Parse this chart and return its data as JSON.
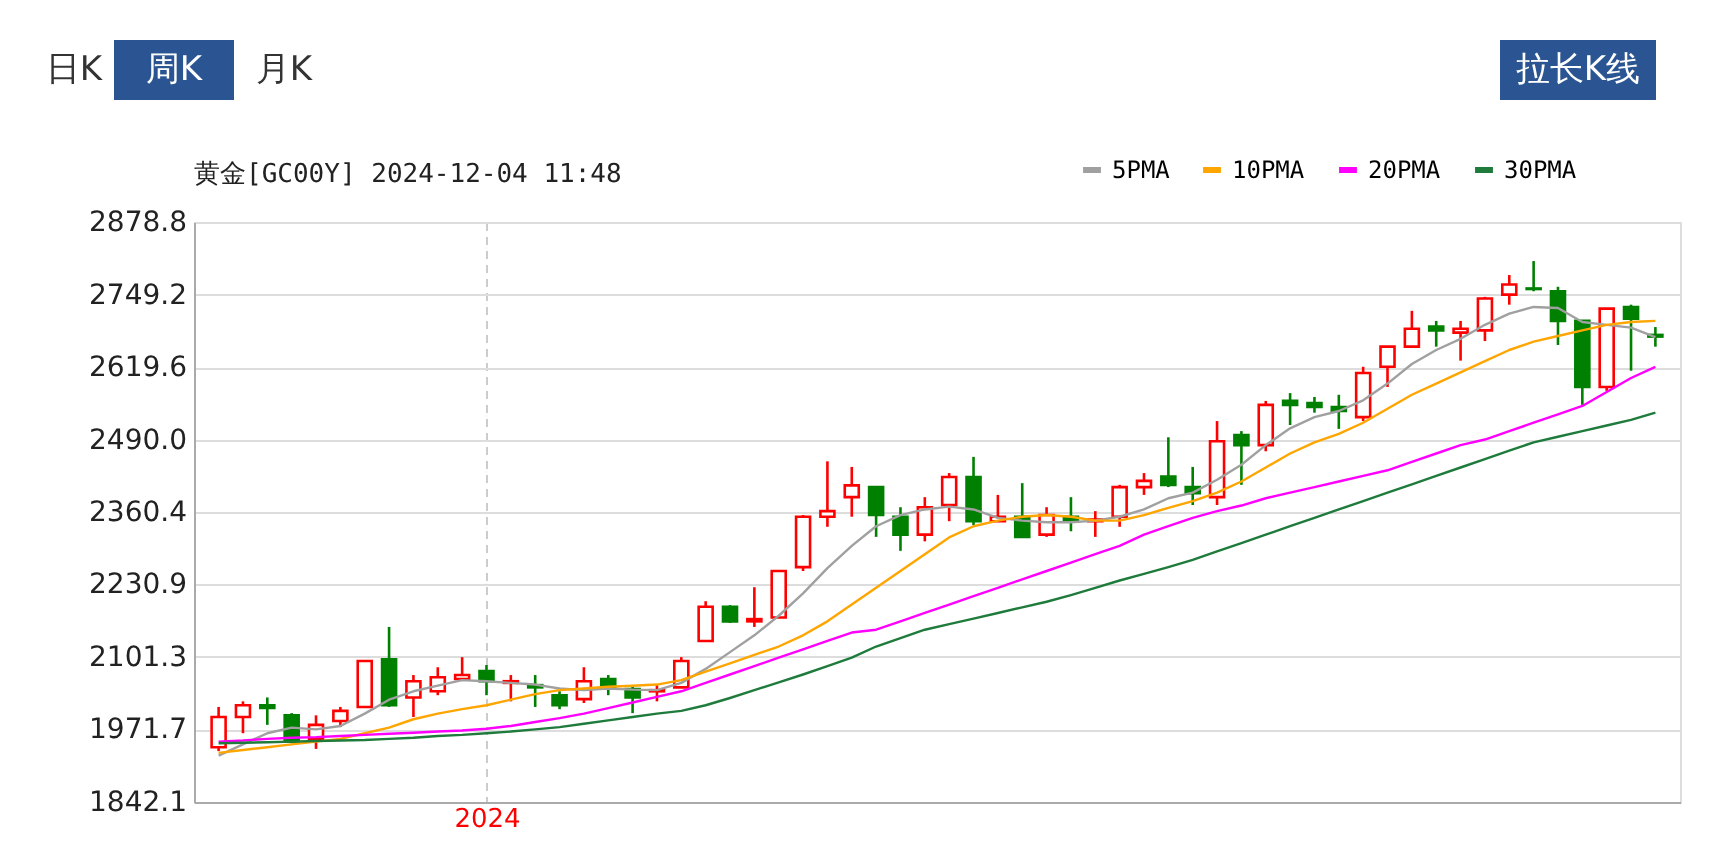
{
  "chart_data": {
    "type": "candlestick",
    "title": "黄金[GC00Y] 2024-12-04 11:48",
    "annotations": [
      "日K",
      "周K",
      "月K",
      "拉长K线"
    ],
    "categories": [
      null,
      null,
      null,
      null,
      null,
      null,
      null,
      null,
      null,
      null,
      null,
      "2024",
      null,
      null,
      null,
      null,
      null,
      null,
      null,
      null,
      null,
      null,
      null,
      null,
      null,
      null,
      null,
      null,
      null,
      null,
      null,
      null,
      null,
      null,
      null,
      null,
      null,
      null,
      null,
      null,
      null,
      null,
      null,
      null,
      null,
      null,
      null,
      null,
      null,
      null,
      null,
      null,
      null,
      null,
      null,
      null,
      null,
      null,
      null,
      null
    ],
    "ohlc": [
      [
        1940,
        2012,
        1933,
        1994
      ],
      [
        1994,
        2022,
        1965,
        2015
      ],
      [
        2015,
        2029,
        1980,
        2010
      ],
      [
        1997,
        2001,
        1947,
        1950
      ],
      [
        1955,
        1997,
        1937,
        1980
      ],
      [
        1987,
        2012,
        1976,
        2005
      ],
      [
        2012,
        2094,
        2012,
        2094
      ],
      [
        2097,
        2155,
        2012,
        2015
      ],
      [
        2029,
        2069,
        1994,
        2058
      ],
      [
        2040,
        2083,
        2033,
        2065
      ],
      [
        2062,
        2101,
        2062,
        2069
      ],
      [
        2076,
        2087,
        2033,
        2058
      ],
      [
        2055,
        2069,
        2022,
        2058
      ],
      [
        2051,
        2069,
        2012,
        2047
      ],
      [
        2033,
        2040,
        2008,
        2015
      ],
      [
        2026,
        2083,
        2019,
        2058
      ],
      [
        2062,
        2069,
        2033,
        2047
      ],
      [
        2044,
        2051,
        2001,
        2029
      ],
      [
        2040,
        2051,
        2022,
        2042
      ],
      [
        2047,
        2101,
        2047,
        2094
      ],
      [
        2130,
        2201,
        2130,
        2191
      ],
      [
        2191,
        2194,
        2162,
        2165
      ],
      [
        2165,
        2226,
        2155,
        2169
      ],
      [
        2172,
        2255,
        2172,
        2255
      ],
      [
        2262,
        2355,
        2255,
        2352
      ],
      [
        2352,
        2451,
        2334,
        2362
      ],
      [
        2387,
        2441,
        2352,
        2408
      ],
      [
        2405,
        2405,
        2316,
        2355
      ],
      [
        2352,
        2369,
        2291,
        2320
      ],
      [
        2320,
        2387,
        2308,
        2369
      ],
      [
        2373,
        2430,
        2344,
        2423
      ],
      [
        2423,
        2459,
        2337,
        2344
      ],
      [
        2344,
        2391,
        2344,
        2352
      ],
      [
        2352,
        2412,
        2316,
        2316
      ],
      [
        2320,
        2369,
        2316,
        2355
      ],
      [
        2352,
        2387,
        2326,
        2344
      ],
      [
        2344,
        2362,
        2316,
        2347
      ],
      [
        2352,
        2409,
        2334,
        2405
      ],
      [
        2405,
        2430,
        2391,
        2416
      ],
      [
        2424,
        2494,
        2405,
        2409
      ],
      [
        2405,
        2441,
        2373,
        2394
      ],
      [
        2387,
        2523,
        2373,
        2487
      ],
      [
        2498,
        2505,
        2409,
        2480
      ],
      [
        2480,
        2559,
        2469,
        2552
      ],
      [
        2559,
        2573,
        2516,
        2552
      ],
      [
        2555,
        2566,
        2538,
        2548
      ],
      [
        2548,
        2570,
        2509,
        2541
      ],
      [
        2530,
        2620,
        2523,
        2609
      ],
      [
        2620,
        2656,
        2584,
        2656
      ],
      [
        2656,
        2720,
        2656,
        2688
      ],
      [
        2692,
        2702,
        2656,
        2685
      ],
      [
        2681,
        2702,
        2631,
        2688
      ],
      [
        2685,
        2745,
        2666,
        2742
      ],
      [
        2749,
        2784,
        2731,
        2767
      ],
      [
        2760,
        2809,
        2755,
        2759
      ],
      [
        2755,
        2763,
        2659,
        2702
      ],
      [
        2702,
        2702,
        2552,
        2584
      ],
      [
        2584,
        2724,
        2577,
        2724
      ],
      [
        2727,
        2731,
        2613,
        2706
      ],
      [
        2677,
        2691,
        2656,
        2674
      ]
    ],
    "colors": [
      "#ff0000",
      "#ff0000",
      "#008000",
      "#008000",
      "#ff0000",
      "#ff0000",
      "#ff0000",
      "#008000",
      "#ff0000",
      "#ff0000",
      "#ff0000",
      "#008000",
      "#ff0000",
      "#008000",
      "#008000",
      "#ff0000",
      "#008000",
      "#008000",
      "#ff0000",
      "#ff0000",
      "#ff0000",
      "#008000",
      "#ff0000",
      "#ff0000",
      "#ff0000",
      "#ff0000",
      "#ff0000",
      "#008000",
      "#008000",
      "#ff0000",
      "#ff0000",
      "#008000",
      "#ff0000",
      "#008000",
      "#ff0000",
      "#008000",
      "#ff0000",
      "#ff0000",
      "#ff0000",
      "#008000",
      "#008000",
      "#ff0000",
      "#008000",
      "#ff0000",
      "#008000",
      "#008000",
      "#008000",
      "#ff0000",
      "#ff0000",
      "#ff0000",
      "#008000",
      "#ff0000",
      "#ff0000",
      "#ff0000",
      "#008000",
      "#008000",
      "#008000",
      "#ff0000",
      "#008000",
      "#008000"
    ],
    "series": [
      {
        "name": "5PMA",
        "type": "line",
        "color": "#a0a0a0",
        "values": [
          1925,
          1945,
          1965,
          1975,
          1972,
          1978,
          2000,
          2025,
          2040,
          2050,
          2060,
          2058,
          2055,
          2052,
          2045,
          2042,
          2045,
          2043,
          2042,
          2055,
          2080,
          2110,
          2140,
          2175,
          2215,
          2260,
          2300,
          2335,
          2355,
          2365,
          2370,
          2365,
          2350,
          2345,
          2342,
          2342,
          2345,
          2352,
          2365,
          2385,
          2395,
          2418,
          2445,
          2480,
          2510,
          2530,
          2541,
          2560,
          2590,
          2625,
          2650,
          2670,
          2695,
          2715,
          2727,
          2725,
          2700,
          2695,
          2690,
          2673
        ]
      },
      {
        "name": "10PMA",
        "type": "line",
        "color": "#ffa500",
        "values": [
          1930,
          1935,
          1940,
          1945,
          1950,
          1955,
          1965,
          1975,
          1990,
          2000,
          2008,
          2015,
          2025,
          2035,
          2042,
          2045,
          2048,
          2050,
          2052,
          2060,
          2075,
          2090,
          2105,
          2120,
          2140,
          2165,
          2195,
          2225,
          2255,
          2285,
          2315,
          2335,
          2345,
          2352,
          2355,
          2352,
          2345,
          2345,
          2355,
          2368,
          2380,
          2395,
          2415,
          2440,
          2465,
          2485,
          2500,
          2520,
          2545,
          2570,
          2590,
          2610,
          2630,
          2650,
          2665,
          2675,
          2685,
          2695,
          2700,
          2702
        ]
      },
      {
        "name": "20PMA",
        "type": "line",
        "color": "#ff00ff",
        "values": [
          1950,
          1952,
          1955,
          1957,
          1958,
          1960,
          1962,
          1964,
          1966,
          1968,
          1970,
          1973,
          1978,
          1985,
          1992,
          2000,
          2010,
          2020,
          2030,
          2040,
          2055,
          2070,
          2085,
          2100,
          2115,
          2130,
          2145,
          2150,
          2165,
          2180,
          2195,
          2210,
          2225,
          2240,
          2255,
          2270,
          2285,
          2300,
          2320,
          2335,
          2350,
          2362,
          2372,
          2385,
          2395,
          2405,
          2415,
          2425,
          2435,
          2450,
          2465,
          2480,
          2490,
          2505,
          2520,
          2535,
          2550,
          2575,
          2600,
          2620
        ]
      },
      {
        "name": "30PMA",
        "type": "line",
        "color": "#1e7b3c",
        "values": [
          1947,
          1948,
          1949,
          1950,
          1951,
          1952,
          1953,
          1955,
          1957,
          1960,
          1962,
          1965,
          1968,
          1972,
          1976,
          1982,
          1988,
          1994,
          2000,
          2005,
          2015,
          2028,
          2042,
          2056,
          2070,
          2085,
          2100,
          2120,
          2135,
          2150,
          2160,
          2170,
          2180,
          2190,
          2200,
          2212,
          2225,
          2238,
          2250,
          2262,
          2275,
          2290,
          2305,
          2320,
          2335,
          2350,
          2365,
          2380,
          2395,
          2410,
          2425,
          2440,
          2455,
          2470,
          2485,
          2495,
          2505,
          2515,
          2525,
          2538
        ]
      }
    ],
    "ylim": [
      1842.1,
      2878.8
    ],
    "yticks": [
      1842.1,
      1971.7,
      2101.3,
      2230.9,
      2360.4,
      {
        "value": 2490,
        "label": "2490.0"
      },
      2619.6,
      2749.2,
      2878.8
    ],
    "grid": true,
    "legend": "top right"
  }
}
